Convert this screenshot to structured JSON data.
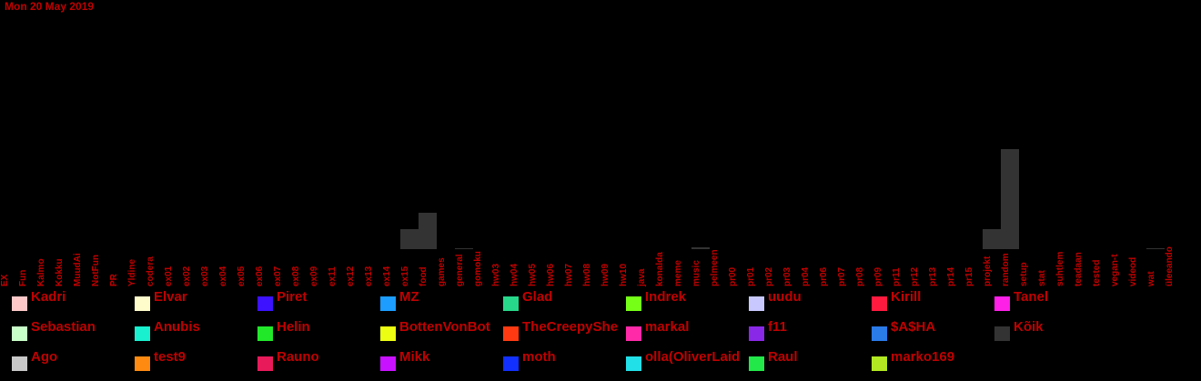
{
  "header": {
    "date": "Mon 20 May 2019"
  },
  "chart_data": {
    "type": "bar",
    "title": "",
    "xlabel": "",
    "ylabel": "",
    "ylim": [
      0,
      110
    ],
    "categories": [
      "EX",
      "Fun",
      "Kalmo",
      "Kokku",
      "MuudAi",
      "NotFun",
      "PR",
      "Yldine",
      "codera",
      "ex01",
      "ex02",
      "ex03",
      "ex04",
      "ex05",
      "ex06",
      "ex07",
      "ex08",
      "ex09",
      "ex11",
      "ex12",
      "ex13",
      "ex14",
      "ex15",
      "food",
      "games",
      "general",
      "gomoku",
      "hw03",
      "hw04",
      "hw05",
      "hw06",
      "hw07",
      "hw08",
      "hw09",
      "hw10",
      "java",
      "konalda",
      "meme",
      "music",
      "pelmeen",
      "pr00",
      "pr01",
      "pr02",
      "pr03",
      "pr04",
      "pr06",
      "pr07",
      "pr08",
      "pr09",
      "pr11",
      "pr12",
      "pr13",
      "pr14",
      "pr15",
      "projekt",
      "random",
      "setup",
      "stat",
      "suhtlem",
      "teadaan",
      "tested",
      "vegan-t",
      "videod",
      "wat",
      "üleeando"
    ],
    "series": [
      {
        "name": "Kõik",
        "color": "#333333",
        "values": [
          0,
          0,
          0,
          0,
          0,
          0,
          0,
          0,
          0,
          0,
          0,
          0,
          0,
          0,
          0,
          0,
          0,
          0,
          0,
          0,
          0,
          0,
          22,
          40,
          0,
          1,
          0,
          0,
          0,
          0,
          0,
          0,
          0,
          0,
          0,
          0,
          0,
          0,
          2,
          0,
          0,
          0,
          0,
          0,
          0,
          0,
          0,
          0,
          0,
          0,
          0,
          0,
          0,
          0,
          22,
          110,
          0,
          0,
          0,
          0,
          0,
          0,
          0,
          1,
          0
        ]
      }
    ],
    "legend": [
      {
        "name": "Kadri",
        "color": "#ffc8c8"
      },
      {
        "name": "Elvar",
        "color": "#fffccc"
      },
      {
        "name": "Piret",
        "color": "#3c12ff"
      },
      {
        "name": "MZ",
        "color": "#1c9dff"
      },
      {
        "name": "Glad",
        "color": "#27d88a"
      },
      {
        "name": "Indrek",
        "color": "#76ff17"
      },
      {
        "name": "uudu",
        "color": "#c8c8ff"
      },
      {
        "name": "Kirill",
        "color": "#ff1a3e"
      },
      {
        "name": "Tanel",
        "color": "#ff20e8"
      },
      {
        "name": "Sebastian",
        "color": "#c8ffc8"
      },
      {
        "name": "Anubis",
        "color": "#18f0d0"
      },
      {
        "name": "Helin",
        "color": "#22e82a"
      },
      {
        "name": "BottenVonBot",
        "color": "#ecff12"
      },
      {
        "name": "TheCreepyShe",
        "color": "#ff3a12"
      },
      {
        "name": "markal",
        "color": "#ff2aa8"
      },
      {
        "name": "f11",
        "color": "#8a28e8"
      },
      {
        "name": "$A$HA",
        "color": "#2a7ae8"
      },
      {
        "name": "Kõik",
        "color": "#333333"
      },
      {
        "name": "Ago",
        "color": "#c8c8c8"
      },
      {
        "name": "test9",
        "color": "#ff8a12"
      },
      {
        "name": "Rauno",
        "color": "#e81a5a"
      },
      {
        "name": "Mikk",
        "color": "#c812ff"
      },
      {
        "name": "moth",
        "color": "#1230ff"
      },
      {
        "name": "olla(OliverLaid",
        "color": "#22e0e8"
      },
      {
        "name": "Raul",
        "color": "#22e84a"
      },
      {
        "name": "marko169",
        "color": "#b2e822"
      }
    ]
  }
}
